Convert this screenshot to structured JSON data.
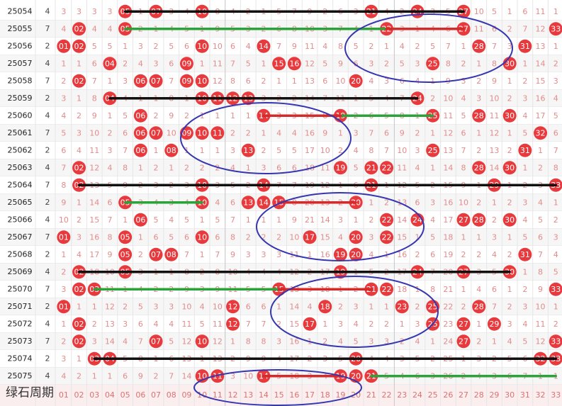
{
  "table": {
    "rows": [
      {
        "issue": "25054",
        "count": 4,
        "cells": [
          3,
          3,
          3,
          3,
          "05",
          1,
          "07",
          3,
          4,
          "10",
          8,
          4,
          2,
          1,
          5,
          7,
          9,
          2,
          6,
          3,
          "21",
          4,
          2,
          "24",
          3,
          5,
          "27",
          10,
          5,
          1,
          6,
          11,
          1
        ]
      },
      {
        "issue": "25055",
        "count": 7,
        "cells": [
          4,
          "02",
          4,
          4,
          "05",
          2,
          1,
          4,
          5,
          1,
          9,
          5,
          3,
          2,
          6,
          8,
          10,
          3,
          7,
          4,
          1,
          "22",
          3,
          1,
          4,
          6,
          "27",
          11,
          6,
          2,
          7,
          12,
          "33"
        ]
      },
      {
        "issue": "25056",
        "count": 2,
        "cells": [
          "01",
          "02",
          5,
          5,
          1,
          3,
          2,
          5,
          6,
          "10",
          10,
          6,
          4,
          "14",
          7,
          9,
          11,
          4,
          8,
          5,
          2,
          1,
          4,
          2,
          5,
          7,
          1,
          "28",
          7,
          3,
          "31",
          13,
          1
        ]
      },
      {
        "issue": "25057",
        "count": 4,
        "cells": [
          1,
          1,
          6,
          "04",
          2,
          4,
          3,
          6,
          "09",
          1,
          11,
          7,
          5,
          1,
          "15",
          "16",
          12,
          5,
          9,
          6,
          3,
          2,
          5,
          3,
          "25",
          8,
          2,
          1,
          8,
          "30",
          1,
          14,
          2
        ]
      },
      {
        "issue": "25058",
        "count": 7,
        "cells": [
          2,
          "02",
          7,
          1,
          3,
          "06",
          "07",
          7,
          "09",
          "10",
          12,
          8,
          6,
          2,
          1,
          1,
          13,
          6,
          10,
          "20",
          4,
          3,
          6,
          4,
          1,
          9,
          3,
          2,
          9,
          1,
          2,
          15,
          3
        ]
      },
      {
        "issue": "25059",
        "count": 2,
        "cells": [
          3,
          1,
          8,
          "04",
          4,
          1,
          1,
          8,
          1,
          "10",
          "11",
          "12",
          "13",
          3,
          2,
          2,
          14,
          7,
          11,
          1,
          5,
          4,
          7,
          "24",
          2,
          10,
          4,
          3,
          10,
          2,
          3,
          16,
          4
        ]
      },
      {
        "issue": "25060",
        "count": 4,
        "cells": [
          4,
          2,
          9,
          1,
          5,
          "06",
          2,
          9,
          2,
          1,
          1,
          1,
          1,
          "14",
          3,
          3,
          15,
          8,
          "19",
          2,
          6,
          5,
          8,
          1,
          "25",
          11,
          5,
          "28",
          11,
          "30",
          4,
          17,
          5
        ]
      },
      {
        "issue": "25061",
        "count": 7,
        "cells": [
          5,
          3,
          10,
          2,
          6,
          "06",
          "07",
          10,
          "09",
          "10",
          "11",
          2,
          2,
          1,
          4,
          4,
          16,
          9,
          1,
          3,
          7,
          6,
          9,
          2,
          1,
          12,
          6,
          1,
          12,
          1,
          5,
          "32",
          6
        ]
      },
      {
        "issue": "25062",
        "count": 2,
        "cells": [
          6,
          4,
          11,
          3,
          7,
          "06",
          1,
          "08",
          1,
          1,
          1,
          3,
          "13",
          2,
          5,
          5,
          17,
          10,
          2,
          4,
          8,
          7,
          10,
          3,
          "25",
          13,
          7,
          2,
          13,
          2,
          "31",
          1,
          7
        ]
      },
      {
        "issue": "25063",
        "count": 4,
        "cells": [
          7,
          "02",
          12,
          4,
          8,
          1,
          2,
          1,
          2,
          2,
          2,
          4,
          1,
          3,
          6,
          6,
          18,
          11,
          "19",
          5,
          "21",
          "22",
          11,
          4,
          1,
          14,
          8,
          "28",
          14,
          "30",
          1,
          2,
          8
        ]
      },
      {
        "issue": "25064",
        "count": 7,
        "cells": [
          8,
          "02",
          13,
          5,
          9,
          2,
          3,
          2,
          3,
          "10",
          3,
          5,
          2,
          "14",
          7,
          7,
          19,
          12,
          1,
          6,
          "21",
          1,
          12,
          5,
          2,
          15,
          9,
          1,
          "29",
          1,
          2,
          3,
          "33"
        ]
      },
      {
        "issue": "25065",
        "count": 2,
        "cells": [
          9,
          1,
          14,
          6,
          "05",
          3,
          4,
          3,
          4,
          "10",
          4,
          6,
          "13",
          "14",
          "15",
          8,
          20,
          13,
          2,
          "20",
          1,
          2,
          13,
          6,
          3,
          16,
          10,
          2,
          1,
          2,
          3,
          4,
          1
        ]
      },
      {
        "issue": "25066",
        "count": 4,
        "cells": [
          10,
          2,
          15,
          7,
          1,
          "06",
          5,
          4,
          5,
          1,
          5,
          7,
          1,
          1,
          1,
          9,
          21,
          14,
          3,
          1,
          2,
          "22",
          14,
          "24",
          4,
          17,
          "27",
          "28",
          2,
          "30",
          4,
          5,
          2
        ]
      },
      {
        "issue": "25067",
        "count": 7,
        "cells": [
          "01",
          3,
          16,
          8,
          "05",
          1,
          6,
          5,
          6,
          "10",
          6,
          8,
          2,
          2,
          2,
          10,
          "17",
          15,
          4,
          "20",
          3,
          "22",
          15,
          1,
          5,
          18,
          1,
          1,
          3,
          1,
          5,
          6,
          3
        ]
      },
      {
        "issue": "25068",
        "count": 2,
        "cells": [
          1,
          4,
          17,
          9,
          "05",
          2,
          "07",
          "08",
          7,
          1,
          7,
          9,
          3,
          3,
          3,
          11,
          1,
          16,
          "19",
          "20",
          4,
          1,
          16,
          2,
          6,
          19,
          2,
          2,
          4,
          2,
          "31",
          7,
          4
        ]
      },
      {
        "issue": "25069",
        "count": 4,
        "cells": [
          2,
          "02",
          18,
          10,
          "05",
          3,
          1,
          1,
          8,
          2,
          8,
          10,
          4,
          4,
          4,
          12,
          2,
          17,
          "19",
          1,
          5,
          2,
          17,
          "24",
          7,
          20,
          "27",
          3,
          5,
          "30",
          1,
          8,
          5
        ]
      },
      {
        "issue": "25070",
        "count": 7,
        "cells": [
          3,
          "02",
          "03",
          11,
          1,
          4,
          2,
          2,
          9,
          3,
          9,
          11,
          5,
          5,
          "15",
          13,
          3,
          18,
          1,
          2,
          "21",
          "22",
          18,
          1,
          8,
          21,
          1,
          4,
          6,
          1,
          2,
          9,
          "33"
        ]
      },
      {
        "issue": "25071",
        "count": 2,
        "cells": [
          "01",
          1,
          1,
          12,
          2,
          5,
          3,
          3,
          10,
          4,
          10,
          "12",
          6,
          6,
          1,
          14,
          4,
          "18",
          2,
          3,
          1,
          1,
          "23",
          2,
          "25",
          22,
          2,
          "28",
          7,
          2,
          3,
          10,
          1
        ]
      },
      {
        "issue": "25072",
        "count": 4,
        "cells": [
          1,
          "02",
          2,
          13,
          3,
          6,
          4,
          4,
          11,
          5,
          11,
          "12",
          7,
          7,
          2,
          15,
          "17",
          1,
          3,
          4,
          2,
          2,
          1,
          3,
          "25",
          23,
          "27",
          1,
          "29",
          3,
          4,
          11,
          2
        ]
      },
      {
        "issue": "25073",
        "count": 7,
        "cells": [
          2,
          "02",
          3,
          14,
          4,
          7,
          "07",
          5,
          12,
          "10",
          12,
          1,
          8,
          8,
          3,
          16,
          1,
          2,
          4,
          5,
          3,
          3,
          2,
          4,
          1,
          24,
          "27",
          2,
          1,
          4,
          5,
          12,
          "33"
        ]
      },
      {
        "issue": "25074",
        "count": 2,
        "cells": [
          3,
          1,
          "03",
          "04",
          5,
          8,
          1,
          6,
          13,
          1,
          13,
          2,
          9,
          9,
          4,
          17,
          2,
          3,
          5,
          "20",
          4,
          4,
          3,
          5,
          2,
          25,
          1,
          3,
          2,
          5,
          6,
          "32",
          "33"
        ]
      },
      {
        "issue": "25075",
        "count": 4,
        "cells": [
          4,
          2,
          1,
          1,
          6,
          9,
          2,
          7,
          14,
          "10",
          "11",
          3,
          10,
          "14",
          5,
          18,
          3,
          4,
          "19",
          "20",
          "21",
          5,
          4,
          6,
          3,
          26,
          2,
          4,
          3,
          6,
          7,
          1,
          1
        ]
      }
    ],
    "footer": {
      "labels": [
        "01",
        "02",
        "03",
        "04",
        "05",
        "06",
        "07",
        "08",
        "09",
        "10",
        "11",
        "12",
        "13",
        "14",
        "15",
        "16",
        "17",
        "18",
        "19",
        "20",
        "21",
        "22",
        "23",
        "24",
        "25",
        "26",
        "27",
        "28",
        "29",
        "30",
        "31",
        "32",
        "33"
      ]
    }
  },
  "watermark": "绿石周期"
}
